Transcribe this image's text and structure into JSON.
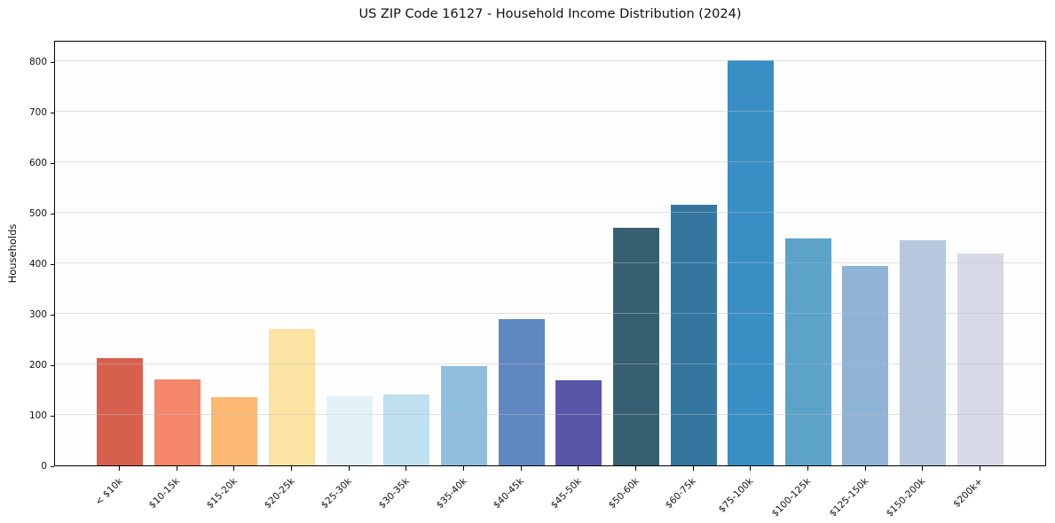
{
  "chart_data": {
    "type": "bar",
    "title": "US ZIP Code 16127 - Household Income Distribution (2024)",
    "xlabel": "",
    "ylabel": "Households",
    "categories": [
      "< $10k",
      "$10-15k",
      "$15-20k",
      "$20-25k",
      "$25-30k",
      "$30-35k",
      "$35-40k",
      "$40-45k",
      "$45-50k",
      "$50-60k",
      "$60-75k",
      "$75-100k",
      "$100-125k",
      "$125-150k",
      "$150-200k",
      "$200k+"
    ],
    "values": [
      212,
      170,
      135,
      270,
      137,
      141,
      196,
      290,
      168,
      470,
      515,
      801,
      450,
      394,
      446,
      419
    ],
    "bar_colors": [
      "#d6604d",
      "#f4876a",
      "#fab872",
      "#fbe3a3",
      "#e4f1f7",
      "#bedfee",
      "#8fbedd",
      "#5f87c0",
      "#5756a8",
      "#365f72",
      "#3476a0",
      "#398fc4",
      "#5ba3c9",
      "#8fb4d6",
      "#b7c8de",
      "#d8d9e6"
    ],
    "yticks": [
      0,
      100,
      200,
      300,
      400,
      500,
      600,
      700,
      800
    ],
    "ylim": [
      0,
      842
    ],
    "grid": "horizontal",
    "legend": "none",
    "axis_color": "#000000",
    "background": "#ffffff"
  }
}
